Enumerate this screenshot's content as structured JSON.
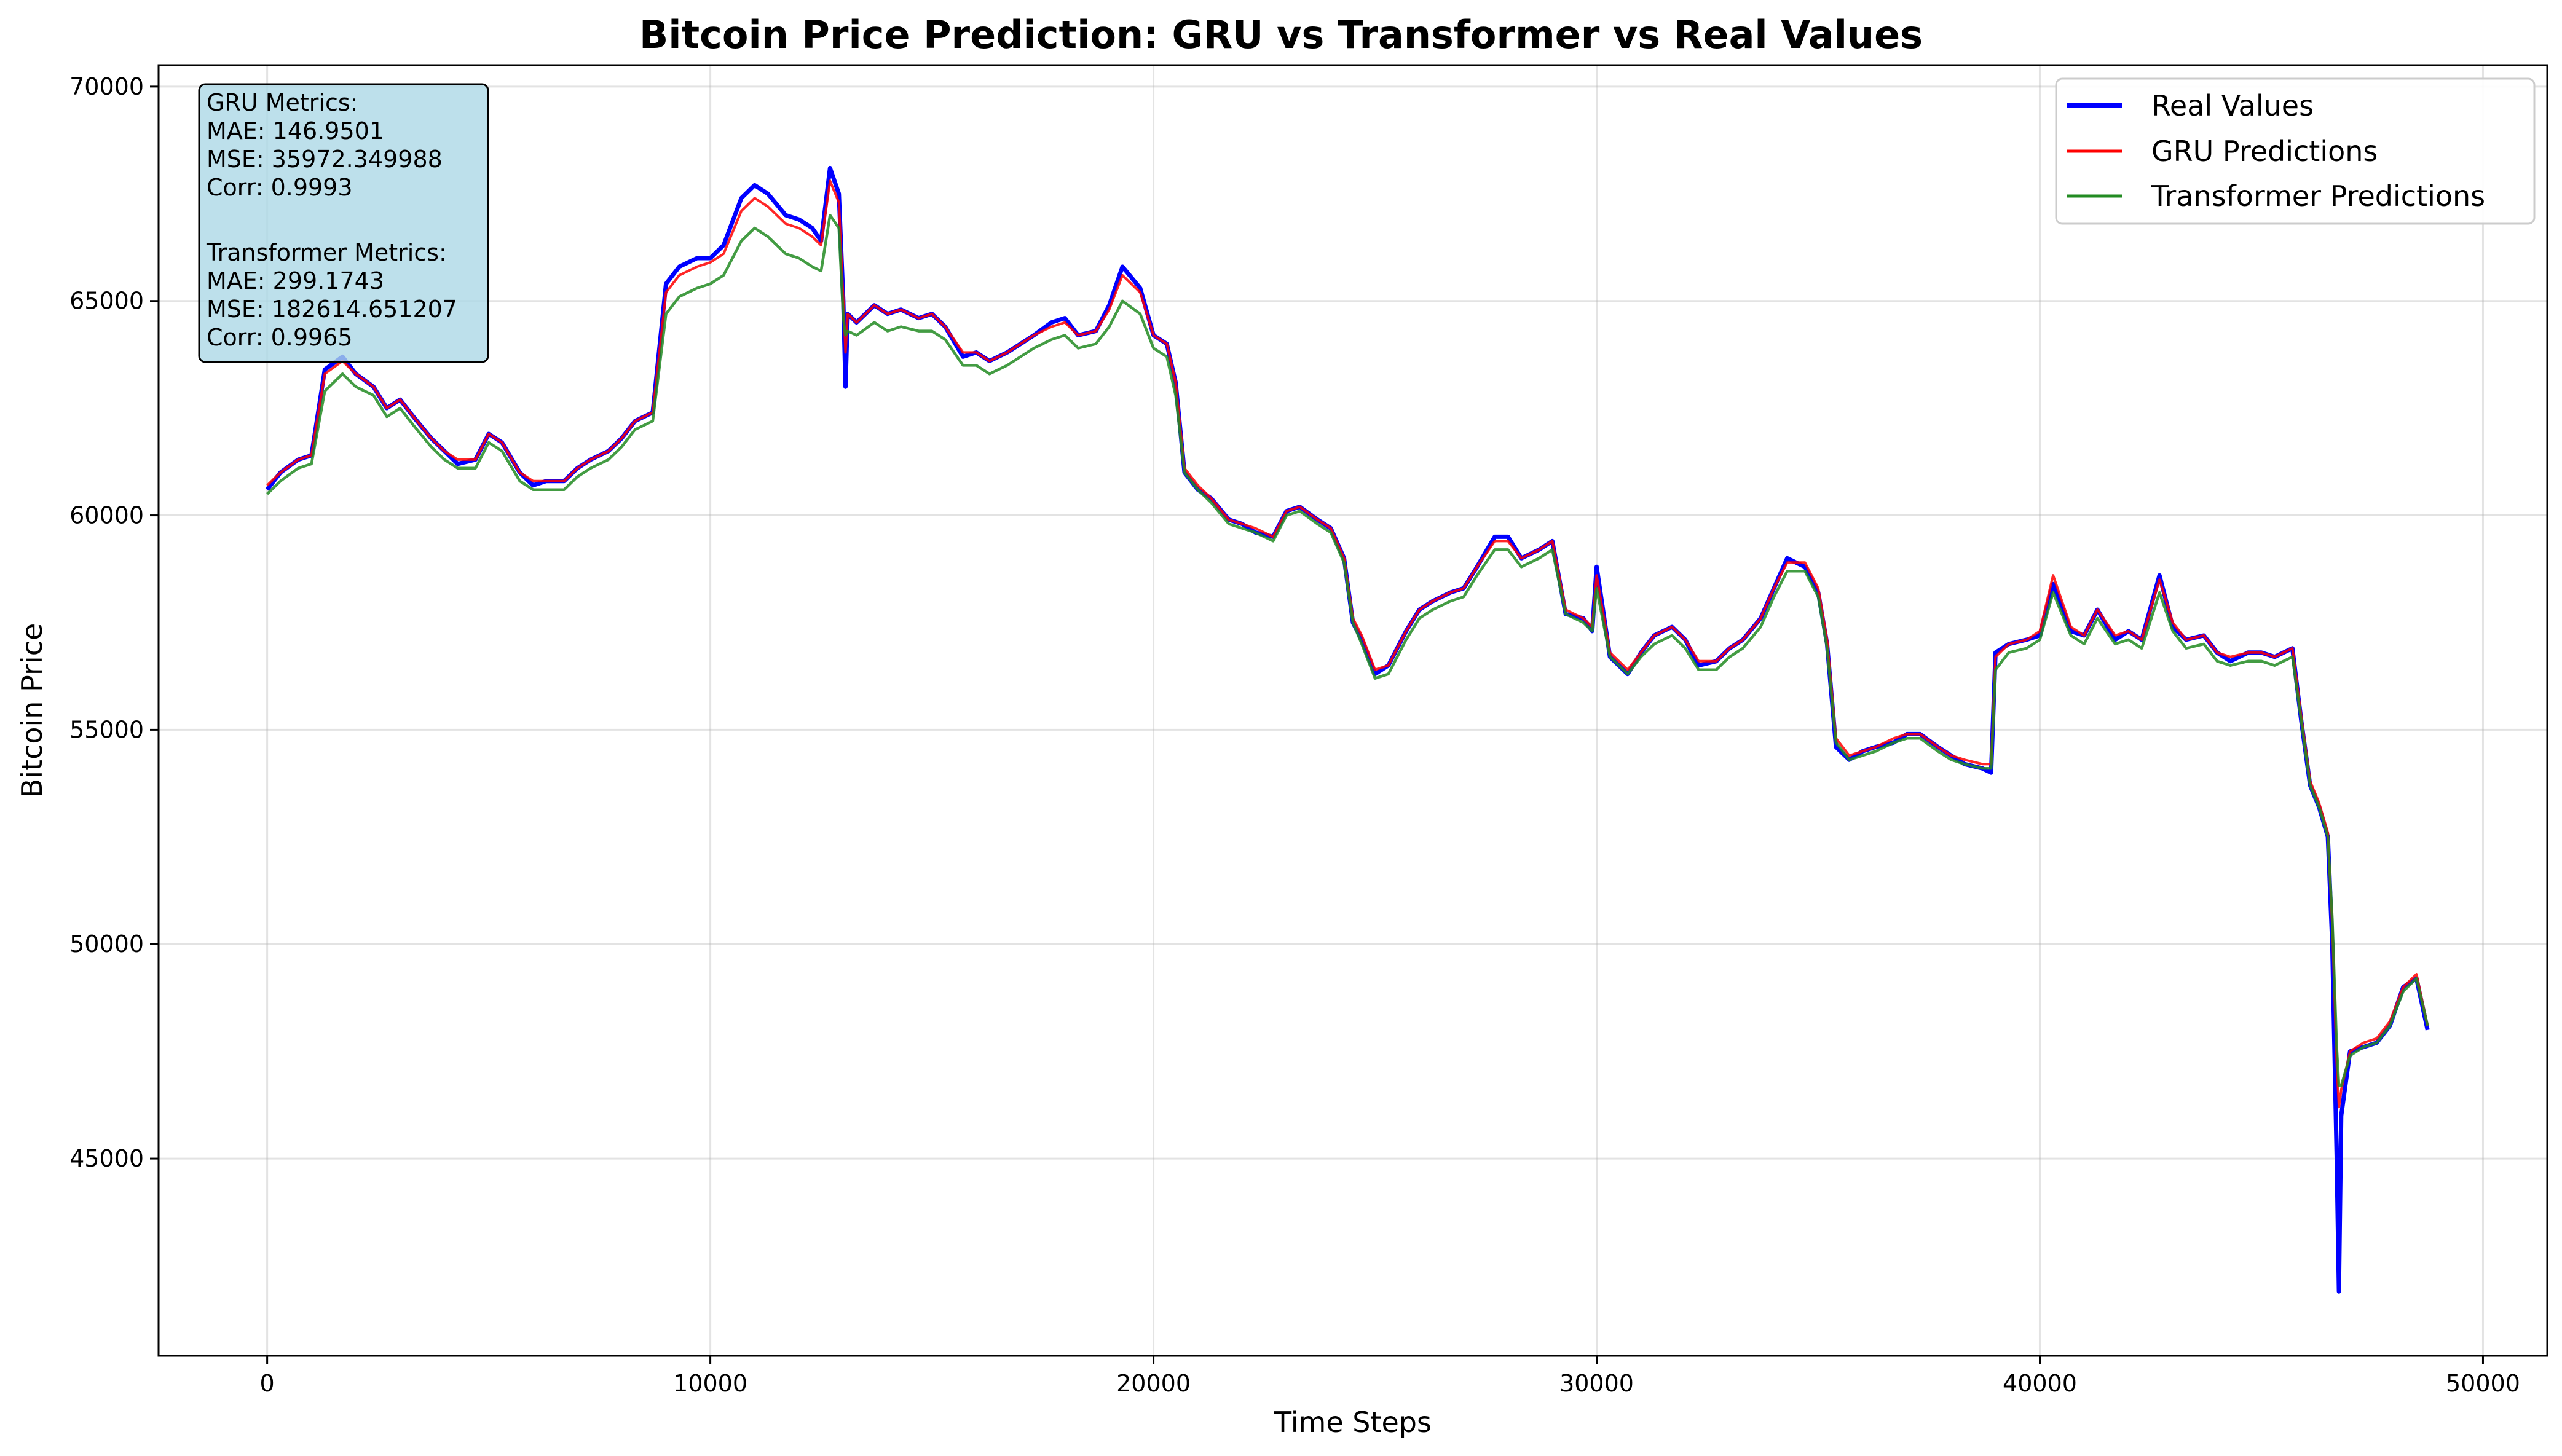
{
  "chart_data": {
    "type": "line",
    "title": "Bitcoin Price Prediction: GRU vs Transformer vs Real Values",
    "xlabel": "Time Steps",
    "ylabel": "Bitcoin Price",
    "xlim": [
      -2450,
      51450
    ],
    "ylim": [
      40400,
      70500
    ],
    "xticks": [
      0,
      10000,
      20000,
      30000,
      40000,
      50000
    ],
    "yticks": [
      45000,
      50000,
      55000,
      60000,
      65000,
      70000
    ],
    "grid": true,
    "legend_position": "top-right",
    "series": [
      {
        "name": "Real Values",
        "color": "#0000ff",
        "x": [
          0,
          300,
          700,
          1000,
          1300,
          1700,
          2000,
          2400,
          2700,
          3000,
          3300,
          3700,
          4000,
          4300,
          4700,
          5000,
          5300,
          5700,
          6000,
          6300,
          6700,
          7000,
          7300,
          7700,
          8000,
          8300,
          8700,
          9000,
          9300,
          9700,
          10000,
          10300,
          10700,
          11000,
          11300,
          11700,
          12000,
          12300,
          12500,
          12700,
          12900,
          13000,
          13050,
          13100,
          13300,
          13700,
          14000,
          14300,
          14700,
          15000,
          15300,
          15700,
          16000,
          16300,
          16700,
          17000,
          17300,
          17700,
          18000,
          18300,
          18700,
          19000,
          19300,
          19700,
          20000,
          20300,
          20500,
          20700,
          21000,
          21300,
          21700,
          22000,
          22300,
          22700,
          23000,
          23300,
          23700,
          24000,
          24300,
          24500,
          24700,
          25000,
          25300,
          25700,
          26000,
          26300,
          26700,
          27000,
          27300,
          27700,
          28000,
          28300,
          28700,
          29000,
          29300,
          29700,
          29900,
          30000,
          30300,
          30700,
          31000,
          31300,
          31700,
          32000,
          32300,
          32700,
          33000,
          33300,
          33700,
          34000,
          34300,
          34700,
          35000,
          35200,
          35400,
          35700,
          36000,
          36300,
          36700,
          37000,
          37300,
          37700,
          38000,
          38300,
          38700,
          38900,
          39000,
          39300,
          39700,
          40000,
          40300,
          40700,
          41000,
          41300,
          41700,
          42000,
          42300,
          42700,
          43000,
          43300,
          43700,
          44000,
          44300,
          44700,
          45000,
          45300,
          45700,
          45900,
          46100,
          46300,
          46500,
          46600,
          46700,
          46750,
          46800,
          47000,
          47300,
          47600,
          47900,
          48200,
          48500,
          48750
        ],
        "y": [
          60600,
          61000,
          61300,
          61400,
          63400,
          63700,
          63300,
          63000,
          62500,
          62700,
          62300,
          61800,
          61500,
          61200,
          61300,
          61900,
          61700,
          61000,
          60700,
          60800,
          60800,
          61100,
          61300,
          61500,
          61800,
          62200,
          62400,
          65400,
          65800,
          66000,
          66000,
          66300,
          67400,
          67700,
          67500,
          67000,
          66900,
          66700,
          66400,
          68100,
          67500,
          65000,
          63000,
          64700,
          64500,
          64900,
          64700,
          64800,
          64600,
          64700,
          64400,
          63700,
          63800,
          63600,
          63800,
          64000,
          64200,
          64500,
          64600,
          64200,
          64300,
          64900,
          65800,
          65300,
          64200,
          64000,
          63100,
          61000,
          60600,
          60400,
          59900,
          59800,
          59600,
          59500,
          60100,
          60200,
          59900,
          59700,
          59000,
          57500,
          57100,
          56300,
          56500,
          57300,
          57800,
          58000,
          58200,
          58300,
          58800,
          59500,
          59500,
          59000,
          59200,
          59400,
          57700,
          57600,
          57300,
          58800,
          56700,
          56300,
          56800,
          57200,
          57400,
          57100,
          56500,
          56600,
          56900,
          57100,
          57600,
          58300,
          59000,
          58800,
          58200,
          57000,
          54600,
          54300,
          54500,
          54600,
          54700,
          54900,
          54900,
          54600,
          54400,
          54200,
          54100,
          54000,
          56800,
          57000,
          57100,
          57200,
          58400,
          57300,
          57200,
          57800,
          57100,
          57300,
          57100,
          58600,
          57400,
          57100,
          57200,
          56800,
          56600,
          56800,
          56800,
          56700,
          56900,
          55200,
          53700,
          53200,
          52500,
          50000,
          45000,
          41900,
          46000,
          47500,
          47600,
          47700,
          48100,
          49000,
          49200,
          48000
        ]
      },
      {
        "name": "GRU Predictions",
        "color": "#ff0000",
        "x": [
          0,
          300,
          700,
          1000,
          1300,
          1700,
          2000,
          2400,
          2700,
          3000,
          3300,
          3700,
          4000,
          4300,
          4700,
          5000,
          5300,
          5700,
          6000,
          6300,
          6700,
          7000,
          7300,
          7700,
          8000,
          8300,
          8700,
          9000,
          9300,
          9700,
          10000,
          10300,
          10700,
          11000,
          11300,
          11700,
          12000,
          12300,
          12500,
          12700,
          12900,
          13000,
          13050,
          13100,
          13300,
          13700,
          14000,
          14300,
          14700,
          15000,
          15300,
          15700,
          16000,
          16300,
          16700,
          17000,
          17300,
          17700,
          18000,
          18300,
          18700,
          19000,
          19300,
          19700,
          20000,
          20300,
          20500,
          20700,
          21000,
          21300,
          21700,
          22000,
          22300,
          22700,
          23000,
          23300,
          23700,
          24000,
          24300,
          24500,
          24700,
          25000,
          25300,
          25700,
          26000,
          26300,
          26700,
          27000,
          27300,
          27700,
          28000,
          28300,
          28700,
          29000,
          29300,
          29700,
          29900,
          30000,
          30300,
          30700,
          31000,
          31300,
          31700,
          32000,
          32300,
          32700,
          33000,
          33300,
          33700,
          34000,
          34300,
          34700,
          35000,
          35200,
          35400,
          35700,
          36000,
          36300,
          36700,
          37000,
          37300,
          37700,
          38000,
          38300,
          38700,
          38900,
          39000,
          39300,
          39700,
          40000,
          40300,
          40700,
          41000,
          41300,
          41700,
          42000,
          42300,
          42700,
          43000,
          43300,
          43700,
          44000,
          44300,
          44700,
          45000,
          45300,
          45700,
          45900,
          46100,
          46300,
          46500,
          46600,
          46700,
          46750,
          46800,
          47000,
          47300,
          47600,
          47900,
          48200,
          48500,
          48750
        ],
        "y": [
          60700,
          61000,
          61300,
          61400,
          63300,
          63600,
          63300,
          63000,
          62500,
          62700,
          62300,
          61800,
          61500,
          61300,
          61300,
          61900,
          61700,
          61000,
          60800,
          60800,
          60800,
          61100,
          61300,
          61500,
          61800,
          62200,
          62400,
          65200,
          65600,
          65800,
          65900,
          66100,
          67100,
          67400,
          67200,
          66800,
          66700,
          66500,
          66300,
          67800,
          67300,
          65000,
          63800,
          64700,
          64500,
          64900,
          64700,
          64800,
          64600,
          64700,
          64400,
          63800,
          63800,
          63600,
          63800,
          64000,
          64200,
          64400,
          64500,
          64200,
          64300,
          64800,
          65600,
          65200,
          64200,
          64000,
          63100,
          61100,
          60700,
          60400,
          59900,
          59800,
          59700,
          59500,
          60100,
          60200,
          59900,
          59700,
          59000,
          57600,
          57200,
          56400,
          56500,
          57300,
          57800,
          58000,
          58200,
          58300,
          58800,
          59400,
          59400,
          59000,
          59200,
          59400,
          57800,
          57600,
          57400,
          58600,
          56800,
          56400,
          56800,
          57200,
          57400,
          57100,
          56600,
          56600,
          56900,
          57100,
          57600,
          58300,
          58900,
          58900,
          58300,
          57100,
          54800,
          54400,
          54500,
          54600,
          54800,
          54900,
          54900,
          54600,
          54400,
          54300,
          54200,
          54200,
          56700,
          57000,
          57100,
          57300,
          58600,
          57400,
          57200,
          57800,
          57200,
          57300,
          57100,
          58500,
          57500,
          57100,
          57200,
          56800,
          56700,
          56800,
          56800,
          56700,
          56900,
          55300,
          53800,
          53300,
          52600,
          50400,
          47200,
          46200,
          46600,
          47500,
          47700,
          47800,
          48200,
          49000,
          49300,
          48100
        ]
      },
      {
        "name": "Transformer Predictions",
        "color": "#228b22",
        "x": [
          0,
          300,
          700,
          1000,
          1300,
          1700,
          2000,
          2400,
          2700,
          3000,
          3300,
          3700,
          4000,
          4300,
          4700,
          5000,
          5300,
          5700,
          6000,
          6300,
          6700,
          7000,
          7300,
          7700,
          8000,
          8300,
          8700,
          9000,
          9300,
          9700,
          10000,
          10300,
          10700,
          11000,
          11300,
          11700,
          12000,
          12300,
          12500,
          12700,
          12900,
          13000,
          13050,
          13100,
          13300,
          13700,
          14000,
          14300,
          14700,
          15000,
          15300,
          15700,
          16000,
          16300,
          16700,
          17000,
          17300,
          17700,
          18000,
          18300,
          18700,
          19000,
          19300,
          19700,
          20000,
          20300,
          20500,
          20700,
          21000,
          21300,
          21700,
          22000,
          22300,
          22700,
          23000,
          23300,
          23700,
          24000,
          24300,
          24500,
          24700,
          25000,
          25300,
          25700,
          26000,
          26300,
          26700,
          27000,
          27300,
          27700,
          28000,
          28300,
          28700,
          29000,
          29300,
          29700,
          29900,
          30000,
          30300,
          30700,
          31000,
          31300,
          31700,
          32000,
          32300,
          32700,
          33000,
          33300,
          33700,
          34000,
          34300,
          34700,
          35000,
          35200,
          35400,
          35700,
          36000,
          36300,
          36700,
          37000,
          37300,
          37700,
          38000,
          38300,
          38700,
          38900,
          39000,
          39300,
          39700,
          40000,
          40300,
          40700,
          41000,
          41300,
          41700,
          42000,
          42300,
          42700,
          43000,
          43300,
          43700,
          44000,
          44300,
          44700,
          45000,
          45300,
          45700,
          45900,
          46100,
          46300,
          46500,
          46600,
          46700,
          46750,
          46800,
          47000,
          47300,
          47600,
          47900,
          48200,
          48500,
          48750
        ],
        "y": [
          60500,
          60800,
          61100,
          61200,
          62900,
          63300,
          63000,
          62800,
          62300,
          62500,
          62100,
          61600,
          61300,
          61100,
          61100,
          61700,
          61500,
          60800,
          60600,
          60600,
          60600,
          60900,
          61100,
          61300,
          61600,
          62000,
          62200,
          64700,
          65100,
          65300,
          65400,
          65600,
          66400,
          66700,
          66500,
          66100,
          66000,
          65800,
          65700,
          67000,
          66700,
          64600,
          64200,
          64300,
          64200,
          64500,
          64300,
          64400,
          64300,
          64300,
          64100,
          63500,
          63500,
          63300,
          63500,
          63700,
          63900,
          64100,
          64200,
          63900,
          64000,
          64400,
          65000,
          64700,
          63900,
          63700,
          62800,
          61000,
          60600,
          60300,
          59800,
          59700,
          59600,
          59400,
          60000,
          60100,
          59800,
          59600,
          58900,
          57500,
          57000,
          56200,
          56300,
          57100,
          57600,
          57800,
          58000,
          58100,
          58600,
          59200,
          59200,
          58800,
          59000,
          59200,
          57700,
          57500,
          57300,
          58300,
          56700,
          56300,
          56700,
          57000,
          57200,
          56900,
          56400,
          56400,
          56700,
          56900,
          57400,
          58100,
          58700,
          58700,
          58100,
          56900,
          54700,
          54300,
          54400,
          54500,
          54700,
          54800,
          54800,
          54500,
          54300,
          54200,
          54100,
          54100,
          56400,
          56800,
          56900,
          57100,
          58200,
          57200,
          57000,
          57600,
          57000,
          57100,
          56900,
          58200,
          57300,
          56900,
          57000,
          56600,
          56500,
          56600,
          56600,
          56500,
          56700,
          55200,
          53700,
          53200,
          52500,
          50600,
          47600,
          46700,
          46700,
          47400,
          47600,
          47700,
          48100,
          48900,
          49200,
          48100
        ]
      }
    ],
    "metrics_box": {
      "lines": [
        "GRU Metrics:",
        "MAE: 146.9501",
        "MSE: 35972.349988",
        "Corr: 0.9993",
        "",
        "Transformer Metrics:",
        "MAE: 299.1743",
        "MSE: 182614.651207",
        "Corr: 0.9965"
      ],
      "background": "#add8e6"
    }
  }
}
